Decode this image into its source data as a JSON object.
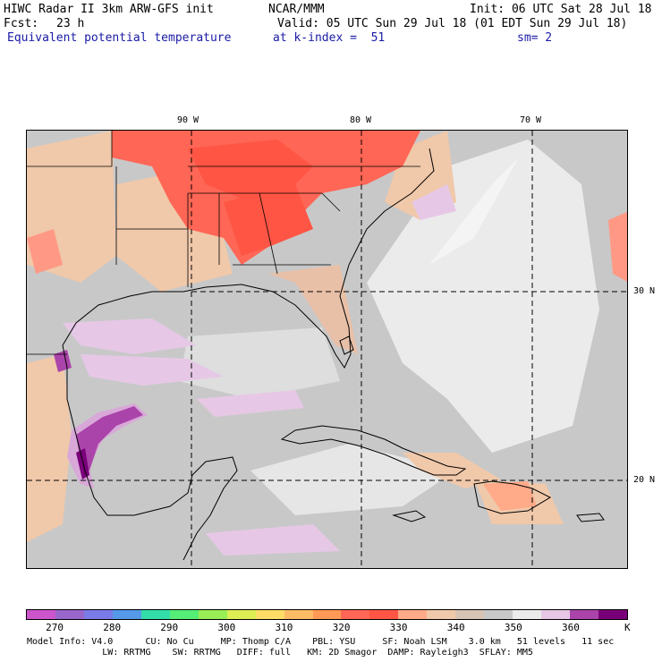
{
  "header": {
    "title": "HIWC Radar II 3km ARW-GFS init",
    "org": "NCAR/MMM",
    "init": "Init: 06 UTC Sat 28 Jul 18",
    "fcst_label": "Fcst:",
    "fcst_value": "23 h",
    "valid": "Valid: 05 UTC Sun 29 Jul 18 (01 EDT Sun 29 Jul 18)",
    "field": "Equivalent potential temperature",
    "level": "at k-index =  51",
    "smoothing": "sm= 2"
  },
  "map": {
    "lon_labels": [
      "90 W",
      "80 W",
      "70 W"
    ],
    "lat_labels": [
      "30 N",
      "20 N"
    ]
  },
  "colorbar": {
    "unit": "K",
    "tick_labels": [
      "270",
      "280",
      "290",
      "300",
      "310",
      "320",
      "330",
      "340",
      "350",
      "360"
    ],
    "colors": [
      "#cc55cc",
      "#9966cc",
      "#7b7be8",
      "#5599e8",
      "#33ddaa",
      "#55ee77",
      "#99ee55",
      "#ddee55",
      "#ffdd66",
      "#ffbb66",
      "#ff9955",
      "#ff6655",
      "#ff5544",
      "#ffaa88",
      "#f0c8aa",
      "#d8c4b4",
      "#c8c8c8",
      "#ebebeb",
      "#e6c8e6",
      "#aa44aa",
      "#7a007a"
    ]
  },
  "footer": {
    "line1": "Model Info: V4.0      CU: No Cu     MP: Thomp C/A    PBL: YSU     SF: Noah LSM    3.0 km   51 levels   11 sec",
    "line2": "              LW: RRTMG    SW: RRTMG   DIFF: full   KM: 2D Smagor  DAMP: Rayleigh3  SFLAY: MM5"
  }
}
